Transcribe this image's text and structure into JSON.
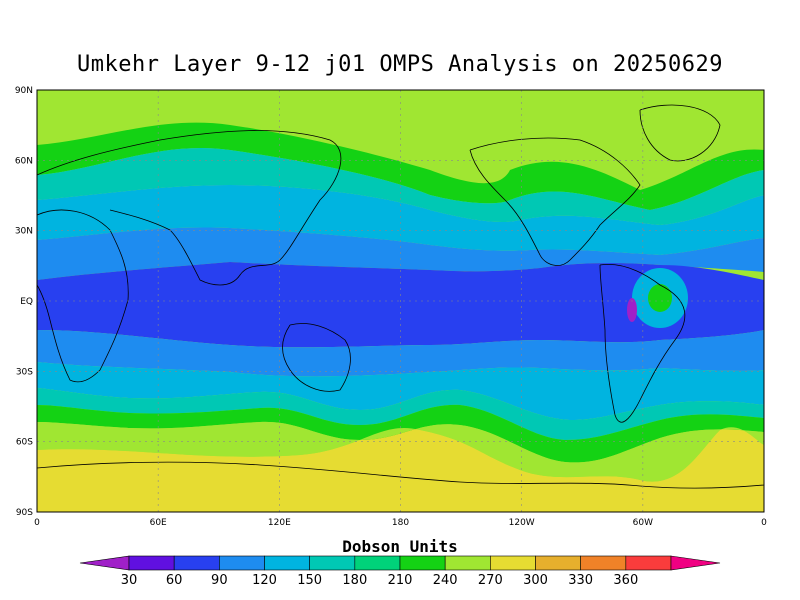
{
  "title": "Umkehr Layer 9-12 j01 OMPS Analysis on 20250629",
  "lat_ticks": [
    "90N",
    "60N",
    "30N",
    "EQ",
    "30S",
    "60S",
    "90S"
  ],
  "lon_ticks": [
    "0",
    "60E",
    "120E",
    "180",
    "120W",
    "60W",
    "0"
  ],
  "colorbar": {
    "units_label": "Dobson Units",
    "ticks": [
      "30",
      "60",
      "90",
      "120",
      "150",
      "180",
      "210",
      "240",
      "270",
      "300",
      "330",
      "360"
    ],
    "colors": [
      "#a020c8",
      "#6010e0",
      "#2840f0",
      "#1e8cf0",
      "#00b4e0",
      "#00c8b4",
      "#00d27a",
      "#14d214",
      "#a0e632",
      "#e6dc32",
      "#e6af2d",
      "#f08228",
      "#fa3c3c",
      "#f00082"
    ]
  },
  "map_colors": {
    "band_90": "#2840f0",
    "band_120": "#1e8cf0",
    "band_150": "#00b4e0",
    "band_180": "#00c8b4",
    "band_210": "#14d214",
    "band_240": "#a0e632",
    "band_270": "#e6dc32",
    "band_30": "#a020c8"
  }
}
